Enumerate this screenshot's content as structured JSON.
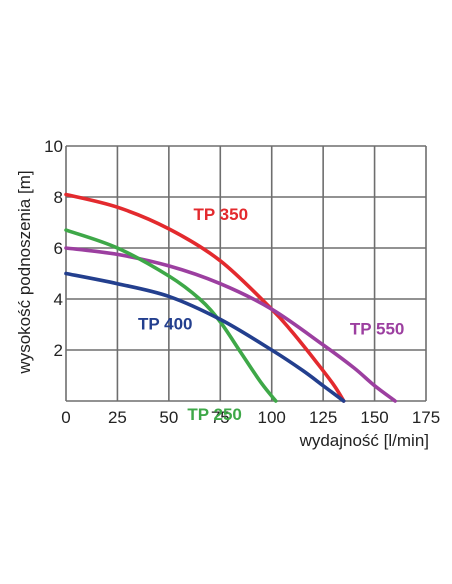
{
  "chart_data": {
    "type": "line",
    "title": "",
    "xlabel": "wydajność  [l/min]",
    "ylabel": "wysokość podnoszenia [m]",
    "xlim": [
      0,
      175
    ],
    "ylim": [
      0,
      10
    ],
    "xticks": [
      0,
      25,
      50,
      75,
      100,
      125,
      150,
      175
    ],
    "yticks": [
      2,
      4,
      6,
      8,
      10
    ],
    "grid": true,
    "legend": "inline labels",
    "series": [
      {
        "name": "TP 350",
        "color": "#e32a2e",
        "x": [
          0,
          25,
          50,
          75,
          100,
          110,
          120,
          130,
          135
        ],
        "y": [
          8.1,
          7.6,
          6.75,
          5.5,
          3.6,
          2.7,
          1.7,
          0.65,
          0
        ]
      },
      {
        "name": "TP 550",
        "color": "#9c3fa0",
        "x": [
          0,
          25,
          50,
          75,
          100,
          125,
          140,
          150,
          160
        ],
        "y": [
          6.0,
          5.75,
          5.3,
          4.6,
          3.6,
          2.2,
          1.3,
          0.6,
          0
        ]
      },
      {
        "name": "TP 250",
        "color": "#3ea848",
        "x": [
          0,
          25,
          50,
          65,
          75,
          85,
          95,
          102
        ],
        "y": [
          6.7,
          6.0,
          4.9,
          4.0,
          3.1,
          1.9,
          0.7,
          0
        ]
      },
      {
        "name": "TP 400",
        "color": "#233f8e",
        "x": [
          0,
          25,
          50,
          75,
          100,
          115,
          125,
          135
        ],
        "y": [
          5.0,
          4.6,
          4.1,
          3.2,
          2.0,
          1.2,
          0.6,
          0
        ]
      }
    ]
  }
}
